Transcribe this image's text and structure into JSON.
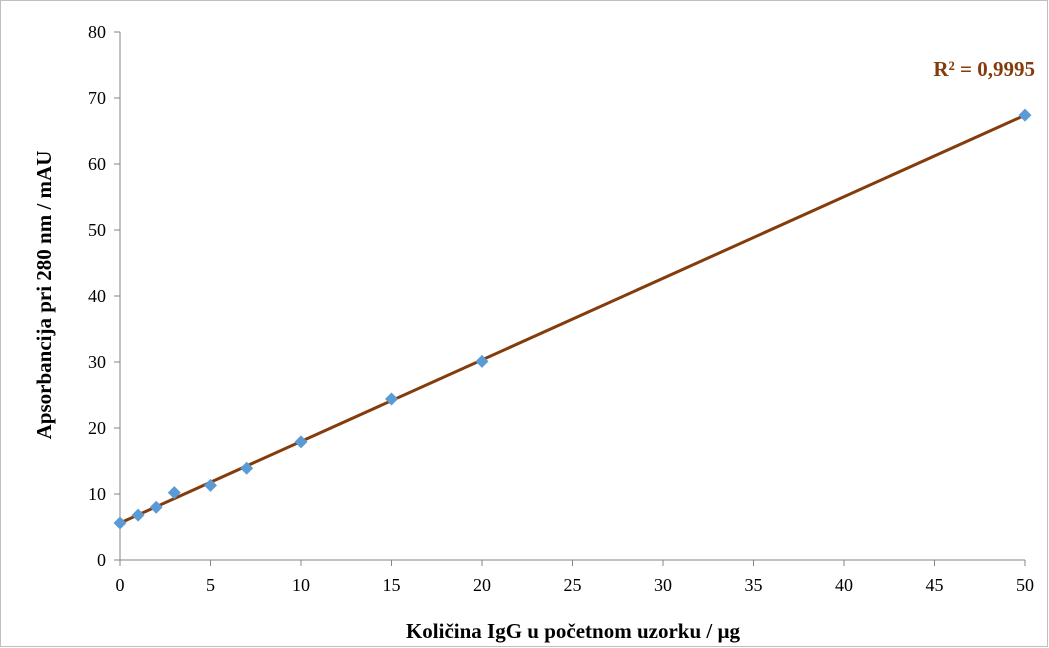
{
  "chart_data": {
    "type": "scatter",
    "xlabel": "Količina IgG u početnom uzorku / µg",
    "ylabel": "Apsorbancija pri 280 nm / mAU",
    "xlim": [
      0,
      50
    ],
    "ylim": [
      0,
      80
    ],
    "xticks": [
      "0",
      "5",
      "10",
      "15",
      "20",
      "25",
      "30",
      "35",
      "40",
      "45",
      "50"
    ],
    "yticks": [
      "0",
      "10",
      "20",
      "30",
      "40",
      "50",
      "60",
      "70",
      "80"
    ],
    "grid": false,
    "legend": "none",
    "series": [
      {
        "points": [
          {
            "x": 0,
            "y": 5.6
          },
          {
            "x": 1,
            "y": 6.8
          },
          {
            "x": 2,
            "y": 8.0
          },
          {
            "x": 3,
            "y": 10.2
          },
          {
            "x": 5,
            "y": 11.3
          },
          {
            "x": 7,
            "y": 13.9
          },
          {
            "x": 10,
            "y": 17.9
          },
          {
            "x": 15,
            "y": 24.4
          },
          {
            "x": 20,
            "y": 30.1
          },
          {
            "x": 50,
            "y": 67.4
          }
        ],
        "marker": "diamond",
        "color": "#5b9bd5"
      }
    ],
    "trendline": {
      "type": "linear",
      "from": {
        "x": 0,
        "y": 5.6
      },
      "to": {
        "x": 50,
        "y": 67.4
      },
      "color": "#843c0c",
      "r2_label": "R² = 0,9995"
    },
    "colors": {
      "axis": "#868686",
      "text": "#000000"
    }
  }
}
